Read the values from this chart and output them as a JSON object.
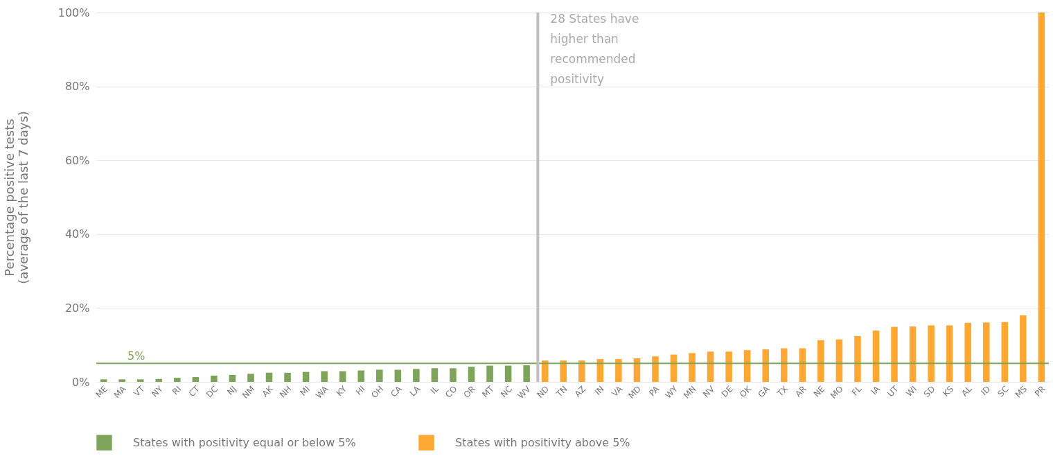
{
  "chart_data": {
    "type": "bar",
    "ylabel": "Percentage positive tests\n(average of the last 7 days)",
    "categories": [
      "ME",
      "MA",
      "VT",
      "NY",
      "RI",
      "CT",
      "DC",
      "NJ",
      "NM",
      "AK",
      "NH",
      "MI",
      "WA",
      "KY",
      "HI",
      "OH",
      "CA",
      "LA",
      "IL",
      "CO",
      "OR",
      "MT",
      "NC",
      "WV",
      "ND",
      "TN",
      "AZ",
      "IN",
      "VA",
      "MD",
      "PA",
      "WY",
      "MN",
      "NV",
      "DE",
      "OK",
      "GA",
      "TX",
      "AR",
      "NE",
      "MO",
      "FL",
      "IA",
      "UT",
      "WI",
      "SD",
      "KS",
      "AL",
      "ID",
      "SC",
      "MS",
      "PR"
    ],
    "series": [
      {
        "name": "States with positivity equal or below 5%",
        "color": "#7ea35a",
        "values": [
          0.7,
          0.7,
          0.7,
          0.8,
          1.1,
          1.3,
          1.7,
          1.9,
          2.2,
          2.5,
          2.5,
          2.7,
          2.9,
          2.9,
          3.1,
          3.3,
          3.3,
          3.5,
          3.7,
          3.7,
          4.1,
          4.4,
          4.4,
          4.5,
          null,
          null,
          null,
          null,
          null,
          null,
          null,
          null,
          null,
          null,
          null,
          null,
          null,
          null,
          null,
          null,
          null,
          null,
          null,
          null,
          null,
          null,
          null,
          null,
          null,
          null,
          null,
          null
        ]
      },
      {
        "name": "States with positivity above 5%",
        "color": "#ffa733",
        "values": [
          null,
          null,
          null,
          null,
          null,
          null,
          null,
          null,
          null,
          null,
          null,
          null,
          null,
          null,
          null,
          null,
          null,
          null,
          null,
          null,
          null,
          null,
          null,
          null,
          5.8,
          5.8,
          5.8,
          6.2,
          6.2,
          6.4,
          6.9,
          7.4,
          7.8,
          8.2,
          8.2,
          8.6,
          8.8,
          9.1,
          9.1,
          11.3,
          11.5,
          12.4,
          13.9,
          14.9,
          15.0,
          15.3,
          15.3,
          16.0,
          16.1,
          16.2,
          18.0,
          100
        ]
      }
    ],
    "ylim": [
      0,
      100
    ],
    "yticks": [
      {
        "value": 0,
        "label": "0%"
      },
      {
        "value": 20,
        "label": "20%"
      },
      {
        "value": 40,
        "label": "40%"
      },
      {
        "value": 60,
        "label": "60%"
      },
      {
        "value": 80,
        "label": "80%"
      },
      {
        "value": 100,
        "label": "100%"
      }
    ],
    "grid": "y",
    "legend": "bottom",
    "ref_lines": [
      {
        "axis": "y",
        "value": 5,
        "label": "5%",
        "color": "#7ea35a"
      },
      {
        "axis": "x",
        "value": "ND",
        "label": "28 States have higher than recommended positivity",
        "color": "#bfbfbf"
      }
    ]
  }
}
